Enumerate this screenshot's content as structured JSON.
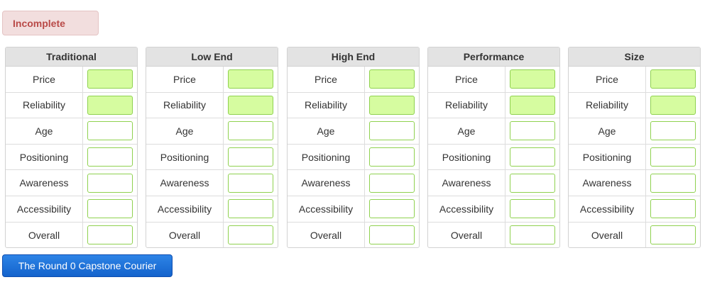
{
  "status": {
    "label": "Incomplete"
  },
  "panels": [
    {
      "title": "Traditional",
      "rows": [
        {
          "label": "Price",
          "value": "",
          "filled": true
        },
        {
          "label": "Reliability",
          "value": "",
          "filled": true
        },
        {
          "label": "Age",
          "value": "",
          "filled": false
        },
        {
          "label": "Positioning",
          "value": "",
          "filled": false
        },
        {
          "label": "Awareness",
          "value": "",
          "filled": false
        },
        {
          "label": "Accessibility",
          "value": "",
          "filled": false
        },
        {
          "label": "Overall",
          "value": "",
          "filled": false
        }
      ]
    },
    {
      "title": "Low End",
      "rows": [
        {
          "label": "Price",
          "value": "",
          "filled": true
        },
        {
          "label": "Reliability",
          "value": "",
          "filled": true
        },
        {
          "label": "Age",
          "value": "",
          "filled": false
        },
        {
          "label": "Positioning",
          "value": "",
          "filled": false
        },
        {
          "label": "Awareness",
          "value": "",
          "filled": false
        },
        {
          "label": "Accessibility",
          "value": "",
          "filled": false
        },
        {
          "label": "Overall",
          "value": "",
          "filled": false
        }
      ]
    },
    {
      "title": "High End",
      "rows": [
        {
          "label": "Price",
          "value": "",
          "filled": true
        },
        {
          "label": "Reliability",
          "value": "",
          "filled": true
        },
        {
          "label": "Age",
          "value": "",
          "filled": false
        },
        {
          "label": "Positioning",
          "value": "",
          "filled": false
        },
        {
          "label": "Awareness",
          "value": "",
          "filled": false
        },
        {
          "label": "Accessibility",
          "value": "",
          "filled": false
        },
        {
          "label": "Overall",
          "value": "",
          "filled": false
        }
      ]
    },
    {
      "title": "Performance",
      "rows": [
        {
          "label": "Price",
          "value": "",
          "filled": true
        },
        {
          "label": "Reliability",
          "value": "",
          "filled": true
        },
        {
          "label": "Age",
          "value": "",
          "filled": false
        },
        {
          "label": "Positioning",
          "value": "",
          "filled": false
        },
        {
          "label": "Awareness",
          "value": "",
          "filled": false
        },
        {
          "label": "Accessibility",
          "value": "",
          "filled": false
        },
        {
          "label": "Overall",
          "value": "",
          "filled": false
        }
      ]
    },
    {
      "title": "Size",
      "rows": [
        {
          "label": "Price",
          "value": "",
          "filled": true
        },
        {
          "label": "Reliability",
          "value": "",
          "filled": true
        },
        {
          "label": "Age",
          "value": "",
          "filled": false
        },
        {
          "label": "Positioning",
          "value": "",
          "filled": false
        },
        {
          "label": "Awareness",
          "value": "",
          "filled": false
        },
        {
          "label": "Accessibility",
          "value": "",
          "filled": false
        },
        {
          "label": "Overall",
          "value": "",
          "filled": false
        }
      ]
    }
  ],
  "courier_button": {
    "label": "The Round 0 Capstone Courier"
  },
  "colors": {
    "filled_field": "#d6fca0",
    "field_border": "#8fd14f",
    "status_text": "#b94a48",
    "status_bg": "#f2dede",
    "button_bg": "#1463cc"
  }
}
